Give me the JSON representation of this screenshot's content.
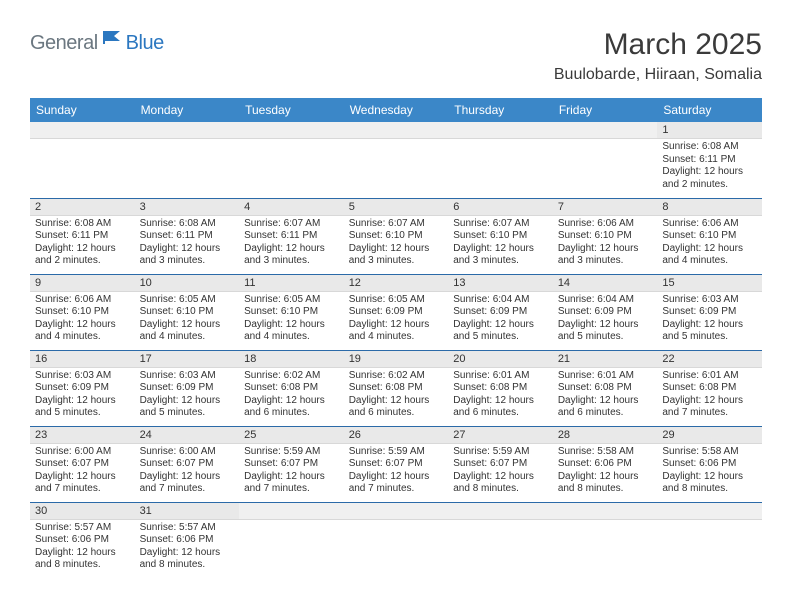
{
  "logo": {
    "text_gray": "General",
    "text_blue": "Blue"
  },
  "title": "March 2025",
  "location": "Buulobarde, Hiiraan, Somalia",
  "colors": {
    "header_bg": "#3b87c8",
    "header_text": "#ffffff",
    "daynum_bg": "#e9e9e9",
    "row_border": "#2b6aa8",
    "logo_gray": "#6b7780",
    "logo_blue": "#2b77c0",
    "body_text": "#333333",
    "page_bg": "#ffffff"
  },
  "typography": {
    "title_fontsize": 30,
    "location_fontsize": 16,
    "weekday_fontsize": 12,
    "daynum_fontsize": 11,
    "body_fontsize": 10
  },
  "weekdays": [
    "Sunday",
    "Monday",
    "Tuesday",
    "Wednesday",
    "Thursday",
    "Friday",
    "Saturday"
  ],
  "weeks": [
    [
      {
        "empty": true
      },
      {
        "empty": true
      },
      {
        "empty": true
      },
      {
        "empty": true
      },
      {
        "empty": true
      },
      {
        "empty": true
      },
      {
        "n": "1",
        "sunrise": "Sunrise: 6:08 AM",
        "sunset": "Sunset: 6:11 PM",
        "daylight": "Daylight: 12 hours and 2 minutes."
      }
    ],
    [
      {
        "n": "2",
        "sunrise": "Sunrise: 6:08 AM",
        "sunset": "Sunset: 6:11 PM",
        "daylight": "Daylight: 12 hours and 2 minutes."
      },
      {
        "n": "3",
        "sunrise": "Sunrise: 6:08 AM",
        "sunset": "Sunset: 6:11 PM",
        "daylight": "Daylight: 12 hours and 3 minutes."
      },
      {
        "n": "4",
        "sunrise": "Sunrise: 6:07 AM",
        "sunset": "Sunset: 6:11 PM",
        "daylight": "Daylight: 12 hours and 3 minutes."
      },
      {
        "n": "5",
        "sunrise": "Sunrise: 6:07 AM",
        "sunset": "Sunset: 6:10 PM",
        "daylight": "Daylight: 12 hours and 3 minutes."
      },
      {
        "n": "6",
        "sunrise": "Sunrise: 6:07 AM",
        "sunset": "Sunset: 6:10 PM",
        "daylight": "Daylight: 12 hours and 3 minutes."
      },
      {
        "n": "7",
        "sunrise": "Sunrise: 6:06 AM",
        "sunset": "Sunset: 6:10 PM",
        "daylight": "Daylight: 12 hours and 3 minutes."
      },
      {
        "n": "8",
        "sunrise": "Sunrise: 6:06 AM",
        "sunset": "Sunset: 6:10 PM",
        "daylight": "Daylight: 12 hours and 4 minutes."
      }
    ],
    [
      {
        "n": "9",
        "sunrise": "Sunrise: 6:06 AM",
        "sunset": "Sunset: 6:10 PM",
        "daylight": "Daylight: 12 hours and 4 minutes."
      },
      {
        "n": "10",
        "sunrise": "Sunrise: 6:05 AM",
        "sunset": "Sunset: 6:10 PM",
        "daylight": "Daylight: 12 hours and 4 minutes."
      },
      {
        "n": "11",
        "sunrise": "Sunrise: 6:05 AM",
        "sunset": "Sunset: 6:10 PM",
        "daylight": "Daylight: 12 hours and 4 minutes."
      },
      {
        "n": "12",
        "sunrise": "Sunrise: 6:05 AM",
        "sunset": "Sunset: 6:09 PM",
        "daylight": "Daylight: 12 hours and 4 minutes."
      },
      {
        "n": "13",
        "sunrise": "Sunrise: 6:04 AM",
        "sunset": "Sunset: 6:09 PM",
        "daylight": "Daylight: 12 hours and 5 minutes."
      },
      {
        "n": "14",
        "sunrise": "Sunrise: 6:04 AM",
        "sunset": "Sunset: 6:09 PM",
        "daylight": "Daylight: 12 hours and 5 minutes."
      },
      {
        "n": "15",
        "sunrise": "Sunrise: 6:03 AM",
        "sunset": "Sunset: 6:09 PM",
        "daylight": "Daylight: 12 hours and 5 minutes."
      }
    ],
    [
      {
        "n": "16",
        "sunrise": "Sunrise: 6:03 AM",
        "sunset": "Sunset: 6:09 PM",
        "daylight": "Daylight: 12 hours and 5 minutes."
      },
      {
        "n": "17",
        "sunrise": "Sunrise: 6:03 AM",
        "sunset": "Sunset: 6:09 PM",
        "daylight": "Daylight: 12 hours and 5 minutes."
      },
      {
        "n": "18",
        "sunrise": "Sunrise: 6:02 AM",
        "sunset": "Sunset: 6:08 PM",
        "daylight": "Daylight: 12 hours and 6 minutes."
      },
      {
        "n": "19",
        "sunrise": "Sunrise: 6:02 AM",
        "sunset": "Sunset: 6:08 PM",
        "daylight": "Daylight: 12 hours and 6 minutes."
      },
      {
        "n": "20",
        "sunrise": "Sunrise: 6:01 AM",
        "sunset": "Sunset: 6:08 PM",
        "daylight": "Daylight: 12 hours and 6 minutes."
      },
      {
        "n": "21",
        "sunrise": "Sunrise: 6:01 AM",
        "sunset": "Sunset: 6:08 PM",
        "daylight": "Daylight: 12 hours and 6 minutes."
      },
      {
        "n": "22",
        "sunrise": "Sunrise: 6:01 AM",
        "sunset": "Sunset: 6:08 PM",
        "daylight": "Daylight: 12 hours and 7 minutes."
      }
    ],
    [
      {
        "n": "23",
        "sunrise": "Sunrise: 6:00 AM",
        "sunset": "Sunset: 6:07 PM",
        "daylight": "Daylight: 12 hours and 7 minutes."
      },
      {
        "n": "24",
        "sunrise": "Sunrise: 6:00 AM",
        "sunset": "Sunset: 6:07 PM",
        "daylight": "Daylight: 12 hours and 7 minutes."
      },
      {
        "n": "25",
        "sunrise": "Sunrise: 5:59 AM",
        "sunset": "Sunset: 6:07 PM",
        "daylight": "Daylight: 12 hours and 7 minutes."
      },
      {
        "n": "26",
        "sunrise": "Sunrise: 5:59 AM",
        "sunset": "Sunset: 6:07 PM",
        "daylight": "Daylight: 12 hours and 7 minutes."
      },
      {
        "n": "27",
        "sunrise": "Sunrise: 5:59 AM",
        "sunset": "Sunset: 6:07 PM",
        "daylight": "Daylight: 12 hours and 8 minutes."
      },
      {
        "n": "28",
        "sunrise": "Sunrise: 5:58 AM",
        "sunset": "Sunset: 6:06 PM",
        "daylight": "Daylight: 12 hours and 8 minutes."
      },
      {
        "n": "29",
        "sunrise": "Sunrise: 5:58 AM",
        "sunset": "Sunset: 6:06 PM",
        "daylight": "Daylight: 12 hours and 8 minutes."
      }
    ],
    [
      {
        "n": "30",
        "sunrise": "Sunrise: 5:57 AM",
        "sunset": "Sunset: 6:06 PM",
        "daylight": "Daylight: 12 hours and 8 minutes."
      },
      {
        "n": "31",
        "sunrise": "Sunrise: 5:57 AM",
        "sunset": "Sunset: 6:06 PM",
        "daylight": "Daylight: 12 hours and 8 minutes."
      },
      {
        "empty": true
      },
      {
        "empty": true
      },
      {
        "empty": true
      },
      {
        "empty": true
      },
      {
        "empty": true
      }
    ]
  ]
}
